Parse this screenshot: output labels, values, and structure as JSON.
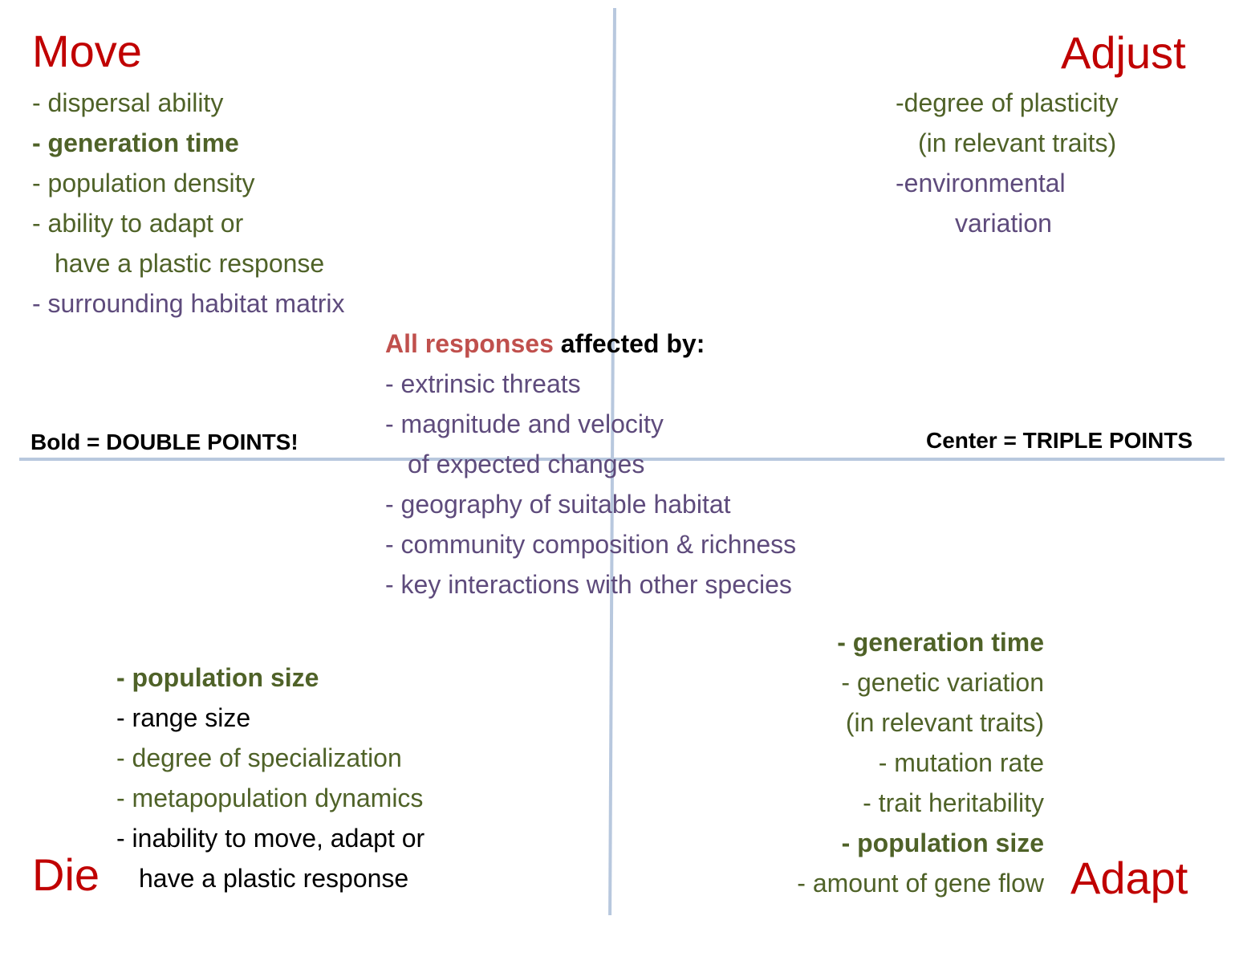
{
  "move": {
    "title": "Move",
    "items": [
      "- dispersal ability",
      "- generation time",
      "- population density",
      "- ability to adapt or",
      "have a plastic response",
      "- surrounding habitat matrix"
    ]
  },
  "adjust": {
    "title": "Adjust",
    "items": [
      "-degree of plasticity",
      "(in relevant traits)",
      "-environmental",
      "variation"
    ]
  },
  "center": {
    "heading_part1": "All responses",
    "heading_part2": " affected by:",
    "items": [
      "- extrinsic threats",
      "- magnitude and velocity",
      "of expected changes",
      "- geography of suitable habitat",
      "- community composition & richness",
      "- key interactions with other species"
    ]
  },
  "notes": {
    "bold": "Bold = DOUBLE POINTS!",
    "center": "Center = TRIPLE POINTS"
  },
  "die": {
    "title": "Die",
    "items": [
      "- population size",
      "- range size",
      "- degree of specialization",
      "- metapopulation dynamics",
      "- inability to move, adapt or",
      "have a plastic response"
    ]
  },
  "adapt": {
    "title": "Adapt",
    "items": [
      "- generation time",
      "- genetic variation",
      "(in relevant traits)",
      "- mutation rate",
      "- trait heritability",
      "- population size",
      "- amount of gene flow"
    ]
  },
  "colors": {
    "title": "#c00000",
    "olive": "#4f6228",
    "purple": "#5e4b7c",
    "accent": "#c0504d",
    "axis": "#b8c8de"
  }
}
